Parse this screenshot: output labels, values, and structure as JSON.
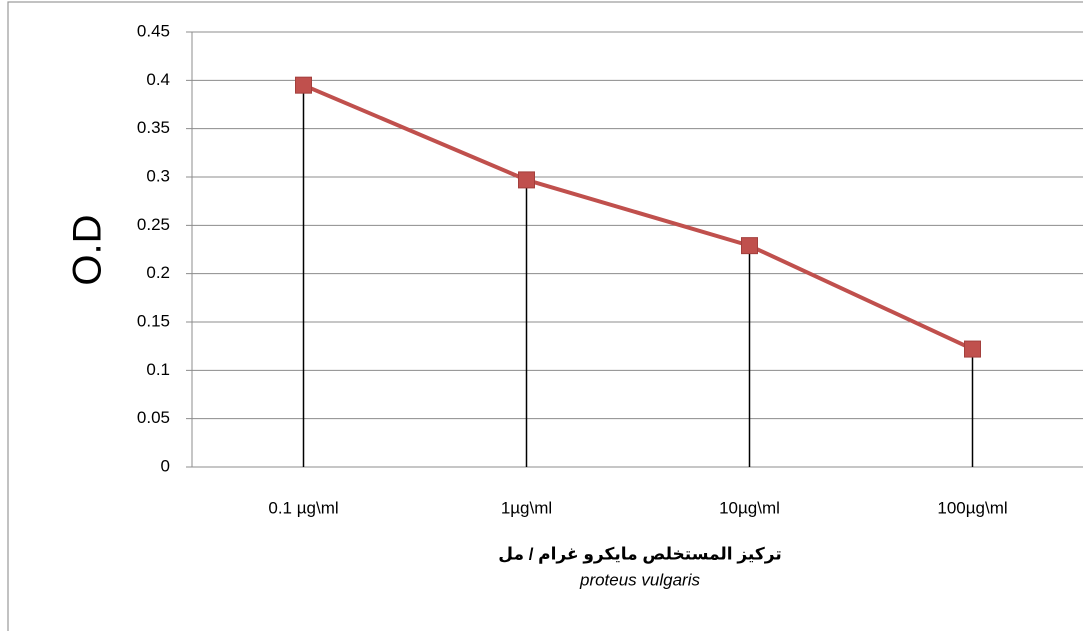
{
  "chart_data": {
    "type": "line",
    "y_label": "O.D",
    "x_label": "تركيز المستخلص مايكرو غرام / مل",
    "subtitle": "proteus vulgaris",
    "categories": [
      "0.1 µg\\ml",
      "1µg\\ml",
      "10µg\\ml",
      "100µg\\ml"
    ],
    "series": [
      {
        "name": "proteus vulgaris",
        "color": "#c0504d",
        "values": [
          0.395,
          0.297,
          0.229,
          0.122
        ]
      }
    ],
    "ylim": [
      0,
      0.45
    ],
    "yticks": [
      0,
      0.05,
      0.1,
      0.15,
      0.2,
      0.25,
      0.3,
      0.35,
      0.4,
      0.45
    ],
    "grid": true,
    "drop_lines": true
  }
}
